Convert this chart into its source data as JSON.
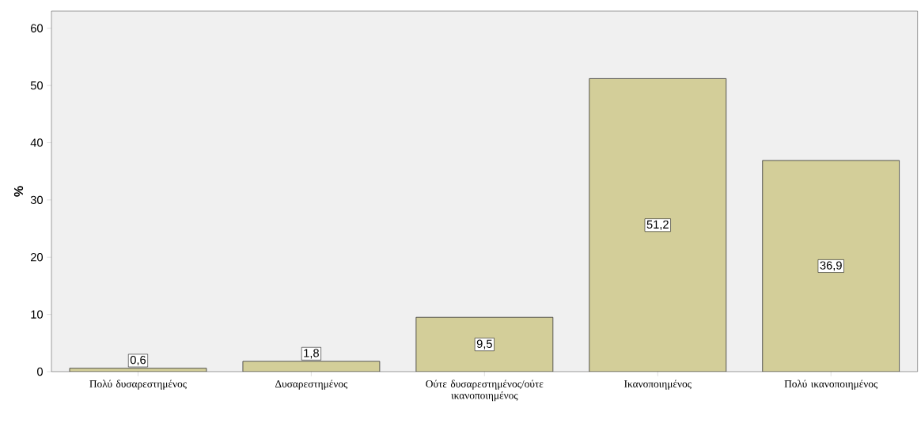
{
  "chart_data": {
    "type": "bar",
    "ylabel": "%",
    "categories": [
      "Πολύ δυσαρεστημένος",
      "Δυσαρεστημένος",
      "Ούτε δυσαρεστημένος/ούτε ικανοποιημένος",
      "Ικανοποιημένος",
      "Πολύ ικανοποιημένος"
    ],
    "values": [
      0.6,
      1.8,
      9.5,
      51.2,
      36.9
    ],
    "value_labels": [
      "0,6",
      "1,8",
      "9,5",
      "51,2",
      "36,9"
    ],
    "color": "#d3ce99",
    "ylim": [
      0,
      63
    ],
    "yticks": [
      0,
      10,
      20,
      30,
      40,
      50,
      60
    ],
    "grid": false
  }
}
